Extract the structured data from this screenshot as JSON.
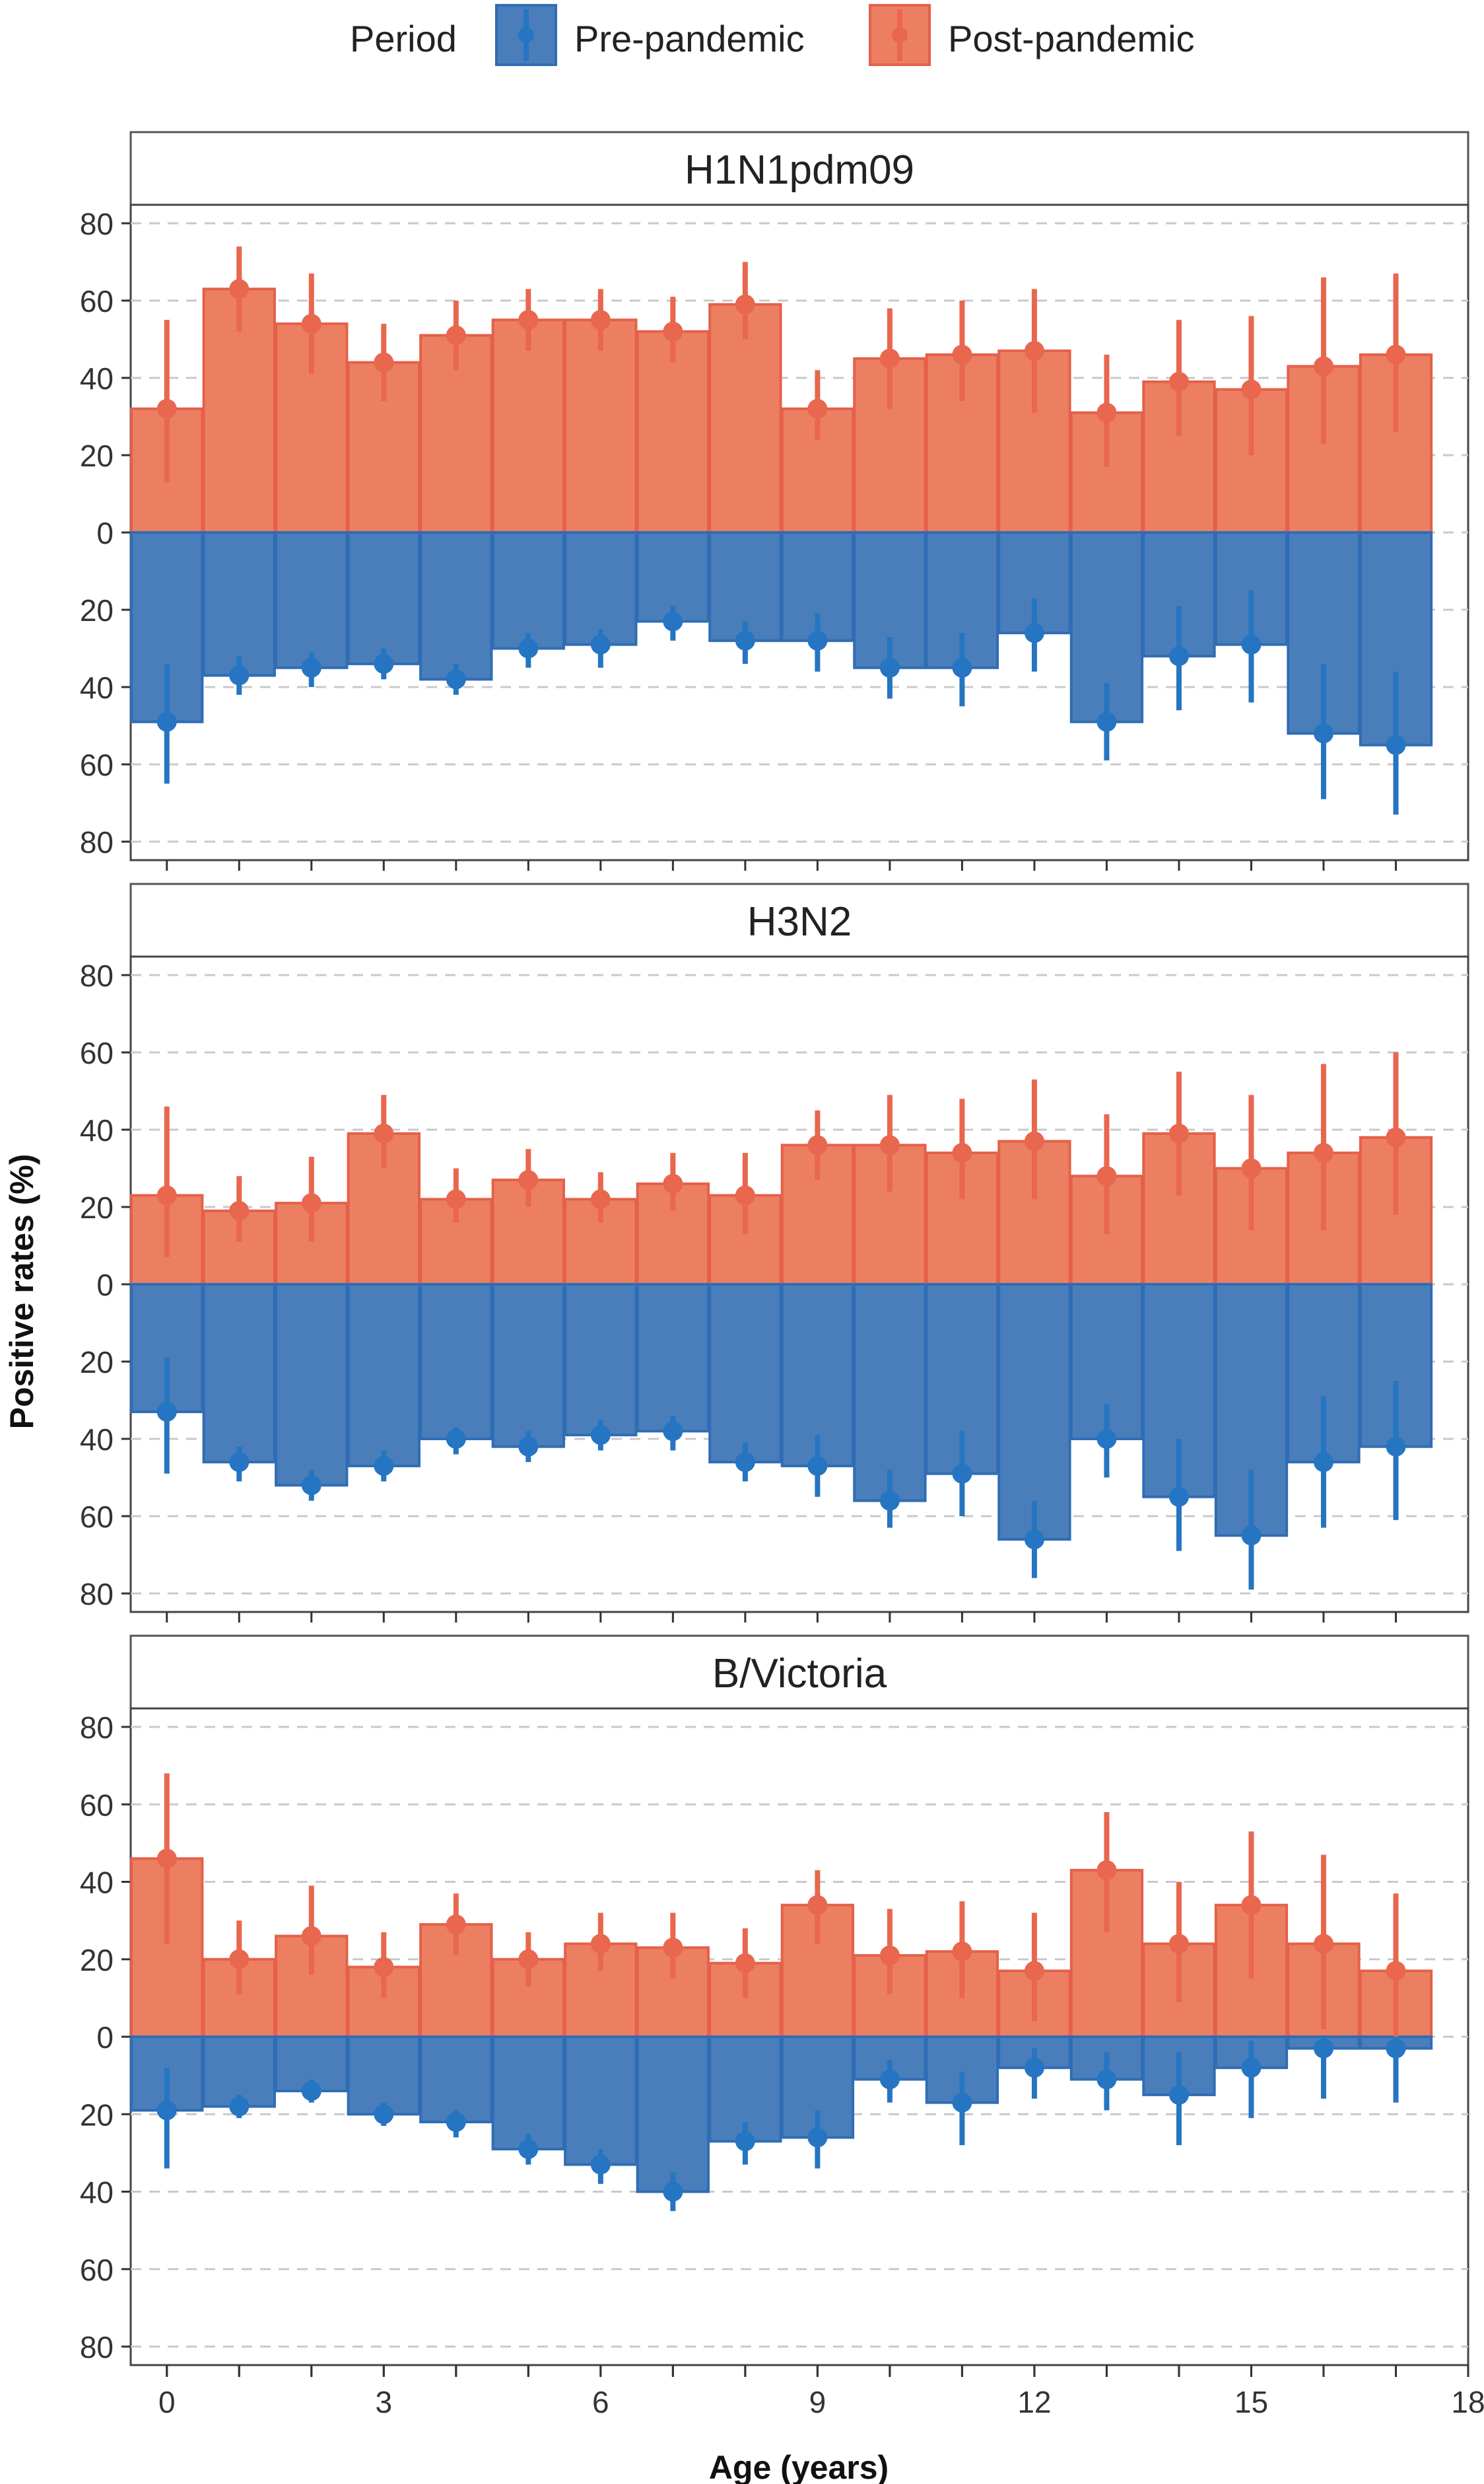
{
  "chart_data": {
    "type": "bar",
    "layout": "faceted, mirrored bars (post-pandemic upward, pre-pandemic downward) with point estimates and error bars",
    "xlabel": "Age (years)",
    "ylabel": "Positive rates (%)",
    "x_ticks": [
      "0",
      "3",
      "6",
      "9",
      "12",
      "15",
      "18"
    ],
    "xlim": [
      -0.5,
      18
    ],
    "y_ticks": [
      "80",
      "60",
      "40",
      "20",
      "0",
      "20",
      "40",
      "60",
      "80"
    ],
    "ylim": [
      -80,
      80
    ],
    "ages": [
      0,
      1,
      2,
      3,
      4,
      5,
      6,
      7,
      8,
      9,
      10,
      11,
      12,
      13,
      14,
      15,
      16,
      17
    ],
    "legend": {
      "title": "Period",
      "position": "top",
      "items": [
        {
          "label": "Pre-pandemic",
          "color": "#4a7ebb"
        },
        {
          "label": "Post-pandemic",
          "color": "#ec7f62"
        }
      ]
    },
    "colors": {
      "pre_fill": "#4a7ebb",
      "pre_edge": "#2f6db5",
      "pre_dark": "#2575c2",
      "post_fill": "#ec7f62",
      "post_edge": "#e5604a",
      "post_dark": "#e8674e"
    },
    "panels": [
      {
        "title": "H1N1pdm09",
        "post": {
          "values": [
            32,
            63,
            54,
            44,
            51,
            55,
            55,
            52,
            59,
            32,
            45,
            46,
            47,
            31,
            39,
            37,
            43,
            46
          ],
          "lower": [
            13,
            52,
            41,
            34,
            42,
            47,
            47,
            44,
            50,
            24,
            32,
            34,
            31,
            17,
            25,
            20,
            23,
            26
          ],
          "upper": [
            55,
            74,
            67,
            54,
            60,
            63,
            63,
            61,
            70,
            42,
            58,
            60,
            63,
            46,
            55,
            56,
            66,
            67
          ]
        },
        "pre": {
          "values": [
            49,
            37,
            35,
            34,
            38,
            30,
            29,
            23,
            28,
            28,
            35,
            35,
            26,
            49,
            32,
            29,
            52,
            55
          ],
          "lower": [
            34,
            32,
            31,
            30,
            34,
            26,
            25,
            19,
            23,
            21,
            27,
            26,
            17,
            39,
            19,
            15,
            34,
            36
          ],
          "upper": [
            65,
            42,
            40,
            38,
            42,
            35,
            35,
            28,
            34,
            36,
            43,
            45,
            36,
            59,
            46,
            44,
            69,
            73
          ]
        }
      },
      {
        "title": "H3N2",
        "post": {
          "values": [
            23,
            19,
            21,
            39,
            22,
            27,
            22,
            26,
            23,
            36,
            36,
            34,
            37,
            28,
            39,
            30,
            34,
            38
          ],
          "lower": [
            7,
            11,
            11,
            30,
            16,
            20,
            16,
            19,
            13,
            27,
            24,
            22,
            22,
            13,
            23,
            14,
            14,
            18
          ],
          "upper": [
            46,
            28,
            33,
            49,
            30,
            35,
            29,
            34,
            34,
            45,
            49,
            48,
            53,
            44,
            55,
            49,
            57,
            60
          ]
        },
        "pre": {
          "values": [
            33,
            46,
            52,
            47,
            40,
            42,
            39,
            38,
            46,
            47,
            56,
            49,
            66,
            40,
            55,
            65,
            46,
            42
          ],
          "lower": [
            19,
            42,
            48,
            43,
            37,
            38,
            35,
            34,
            41,
            39,
            48,
            38,
            56,
            31,
            40,
            48,
            29,
            25
          ],
          "upper": [
            49,
            51,
            56,
            51,
            44,
            46,
            43,
            43,
            51,
            55,
            63,
            60,
            76,
            50,
            69,
            79,
            63,
            61
          ]
        }
      },
      {
        "title": "B/Victoria",
        "post": {
          "values": [
            46,
            20,
            26,
            18,
            29,
            20,
            24,
            23,
            19,
            34,
            21,
            22,
            17,
            43,
            24,
            34,
            24,
            17
          ],
          "lower": [
            24,
            11,
            16,
            10,
            21,
            13,
            17,
            15,
            10,
            24,
            11,
            10,
            4,
            27,
            9,
            15,
            2,
            0
          ],
          "upper": [
            68,
            30,
            39,
            27,
            37,
            27,
            32,
            32,
            28,
            43,
            33,
            35,
            32,
            58,
            40,
            53,
            47,
            37
          ]
        },
        "pre": {
          "values": [
            19,
            18,
            14,
            20,
            22,
            29,
            33,
            40,
            27,
            26,
            11,
            17,
            8,
            11,
            15,
            8,
            3,
            3
          ],
          "lower": [
            8,
            15,
            11,
            17,
            19,
            25,
            29,
            35,
            22,
            19,
            6,
            9,
            3,
            4,
            4,
            1,
            0,
            0
          ],
          "upper": [
            34,
            21,
            17,
            23,
            26,
            33,
            38,
            45,
            33,
            34,
            17,
            28,
            16,
            19,
            28,
            21,
            16,
            17
          ]
        }
      }
    ]
  }
}
